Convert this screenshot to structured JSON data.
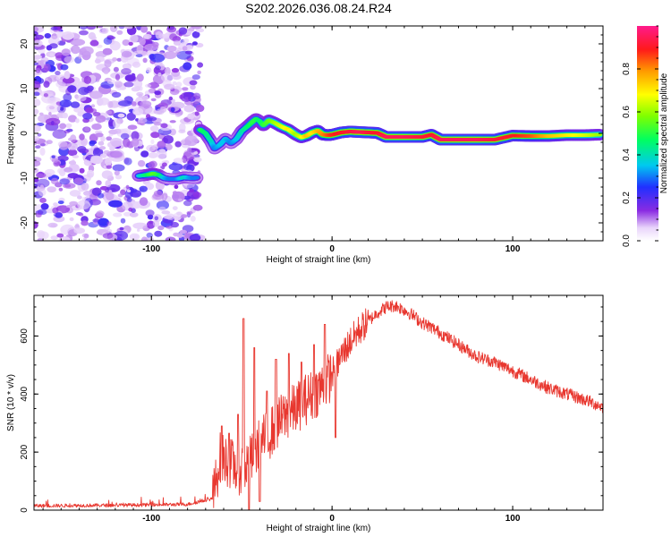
{
  "figure_title": "S202.2026.036.08.24.R24",
  "colors": {
    "snr_line": "#e8372f",
    "frame": "#000000"
  },
  "chart_data": [
    {
      "type": "heatmap",
      "title": "S202.2026.036.08.24.R24",
      "xlabel": "Height of straight line (km)",
      "ylabel": "Frequency (Hz)",
      "xlim": [
        -165,
        150
      ],
      "ylim": [
        -24,
        24
      ],
      "xticks": [
        -100,
        0,
        100
      ],
      "xtick_labels": [
        "-100",
        "0",
        "100"
      ],
      "yticks": [
        -20,
        -10,
        0,
        10,
        20
      ],
      "ytick_labels": [
        "-20",
        "-10",
        "0",
        "10",
        "20"
      ],
      "grid": false,
      "colorbar": {
        "label": "Normalized spectral amplitude",
        "range": [
          0,
          1
        ],
        "ticks": [
          0.0,
          0.2,
          0.4,
          0.6,
          0.8
        ],
        "tick_labels": [
          "0.0",
          "0.2",
          "0.4",
          "0.6",
          "0.8"
        ]
      },
      "noise_region_x": [
        -165,
        -73
      ],
      "main_trace": {
        "x": [
          -73,
          -70,
          -67,
          -65,
          -62,
          -59,
          -56,
          -53,
          -50,
          -47,
          -44,
          -42,
          -40,
          -38,
          -35,
          -32,
          -28,
          -24,
          -20,
          -17,
          -14,
          -11,
          -8,
          -5,
          -2,
          0,
          5,
          10,
          15,
          20,
          25,
          30,
          40,
          50,
          55,
          60,
          70,
          80,
          90,
          100,
          110,
          120,
          130,
          140,
          148
        ],
        "freq": [
          0.8,
          0,
          -1.8,
          -3.4,
          -2.5,
          -1.2,
          -2.2,
          -1.3,
          0.5,
          1.5,
          2.6,
          3.2,
          2.7,
          1.8,
          2.9,
          2.4,
          1.5,
          0.8,
          -0.3,
          -0.9,
          -0.5,
          0.2,
          0.6,
          -0.3,
          -0.4,
          -0.3,
          0.2,
          0.4,
          0.3,
          0.2,
          0.1,
          -0.8,
          -0.8,
          -0.8,
          -0.3,
          -1.4,
          -1.4,
          -1.4,
          -1.4,
          -0.5,
          -0.6,
          -0.6,
          -0.4,
          -0.4,
          -0.3
        ],
        "amp": [
          0.5,
          0.45,
          0.4,
          0.3,
          0.35,
          0.35,
          0.3,
          0.35,
          0.4,
          0.45,
          0.5,
          0.5,
          0.45,
          0.5,
          0.55,
          0.6,
          0.65,
          0.7,
          0.6,
          0.65,
          0.75,
          0.7,
          0.75,
          0.8,
          0.85,
          0.88,
          0.9,
          0.92,
          0.95,
          0.92,
          0.9,
          0.95,
          0.95,
          0.92,
          0.9,
          0.95,
          0.95,
          0.95,
          0.92,
          0.9,
          0.85,
          0.75,
          0.7,
          0.65,
          0.6
        ]
      },
      "side_trace": {
        "x": [
          -107,
          -103,
          -99,
          -96,
          -93,
          -90,
          -86,
          -84,
          -82,
          -80,
          -77,
          -75
        ],
        "freq": [
          -9.5,
          -9.3,
          -9.0,
          -9.3,
          -10.0,
          -10.2,
          -10.2,
          -10.0,
          -9.8,
          -9.9,
          -10.0,
          -9.9
        ],
        "amp": [
          0.35,
          0.45,
          0.55,
          0.5,
          0.35,
          0.3,
          0.3,
          0.35,
          0.4,
          0.35,
          0.3,
          0.3
        ]
      }
    },
    {
      "type": "line",
      "xlabel": "Height of straight line (km)",
      "ylabel": "SNR (10 * v/v)",
      "xlim": [
        -165,
        150
      ],
      "ylim": [
        0,
        740
      ],
      "xticks": [
        -100,
        0,
        100
      ],
      "xtick_labels": [
        "-100",
        "0",
        "100"
      ],
      "yticks": [
        0,
        200,
        400,
        600
      ],
      "ytick_labels": [
        "0",
        "200",
        "400",
        "600"
      ],
      "grid": false,
      "series": [
        {
          "name": "SNR",
          "envelope_x": [
            -165,
            -120,
            -80,
            -66,
            -62,
            -58,
            -52,
            -48,
            -44,
            -40,
            -35,
            -30,
            -25,
            -20,
            -15,
            -10,
            -5,
            0,
            5,
            10,
            15,
            20,
            25,
            30,
            35,
            40,
            45,
            50,
            55,
            60,
            65,
            70,
            80,
            90,
            100,
            110,
            120,
            130,
            140,
            150
          ],
          "envelope_y": [
            15,
            17,
            20,
            40,
            180,
            170,
            140,
            150,
            180,
            230,
            260,
            300,
            330,
            350,
            380,
            400,
            430,
            470,
            530,
            580,
            620,
            650,
            680,
            700,
            705,
            690,
            670,
            645,
            630,
            610,
            590,
            570,
            530,
            510,
            480,
            450,
            420,
            400,
            380,
            355
          ],
          "spikes": [
            {
              "x": -61,
              "y": 290
            },
            {
              "x": -57,
              "y": 265
            },
            {
              "x": -52,
              "y": 330
            },
            {
              "x": -49,
              "y": 660
            },
            {
              "x": -46,
              "y": 0
            },
            {
              "x": -43,
              "y": 560
            },
            {
              "x": -40,
              "y": 30
            },
            {
              "x": -36,
              "y": 410
            },
            {
              "x": -31,
              "y": 520
            },
            {
              "x": -24,
              "y": 540
            },
            {
              "x": -17,
              "y": 510
            },
            {
              "x": -10,
              "y": 570
            },
            {
              "x": -4,
              "y": 640
            },
            {
              "x": 2,
              "y": 250
            }
          ]
        }
      ]
    }
  ]
}
